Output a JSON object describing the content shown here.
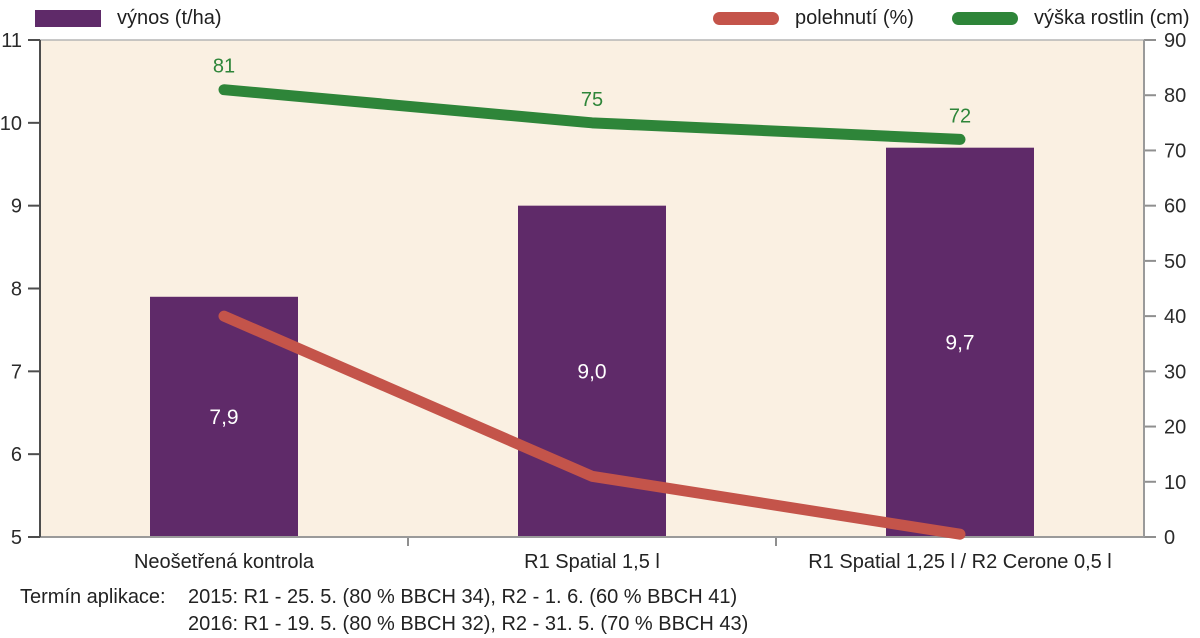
{
  "legend": {
    "items": [
      {
        "label": "výnos (t/ha)",
        "color": "#5f2a69",
        "marker": "rect"
      },
      {
        "label": "polehnutí (%)",
        "color": "#c4544a",
        "marker": "line"
      },
      {
        "label": "výška rostlin (cm)",
        "color": "#2e8539",
        "marker": "line"
      }
    ]
  },
  "chart_data": {
    "type": "bar",
    "subtype": "combo-bar-line",
    "categories": [
      "Neošetřená kontrola",
      "R1 Spatial 1,5 l",
      "R1 Spatial 1,25 l / R2 Cerone 0,5 l"
    ],
    "series": [
      {
        "name": "výnos (t/ha)",
        "type": "bar",
        "axis": "left",
        "color": "#5f2a69",
        "values": [
          7.9,
          9.0,
          9.7
        ],
        "value_labels": [
          "7,9",
          "9,0",
          "9,7"
        ],
        "label_color": "#ffffff"
      },
      {
        "name": "polehnutí (%)",
        "type": "line",
        "axis": "right",
        "color": "#c4544a",
        "values": [
          40,
          11,
          0.5
        ],
        "value_labels": []
      },
      {
        "name": "výška rostlin (cm)",
        "type": "line",
        "axis": "right",
        "color": "#2e8539",
        "values": [
          81,
          75,
          72
        ],
        "value_labels": [
          "81",
          "75",
          "72"
        ],
        "label_color": "#2e8539"
      }
    ],
    "left_axis": {
      "min": 5,
      "max": 11,
      "step": 1,
      "tick_labels": [
        "5",
        "6",
        "7",
        "8",
        "9",
        "10",
        "11"
      ]
    },
    "right_axis": {
      "min": 0,
      "max": 90,
      "step": 10,
      "tick_labels": [
        "0",
        "10",
        "20",
        "30",
        "40",
        "50",
        "60",
        "70",
        "80",
        "90"
      ]
    },
    "plot_background": "#faf0e2",
    "grid": "off",
    "legend_position": "top"
  },
  "footer": {
    "label": "Termín aplikace:",
    "lines": [
      "2015: R1 - 25. 5. (80 % BBCH 34), R2 - 1. 6. (60 % BBCH 41)",
      "2016: R1 - 19. 5. (80 % BBCH 32), R2 - 31. 5. (70 % BBCH 43)"
    ]
  }
}
